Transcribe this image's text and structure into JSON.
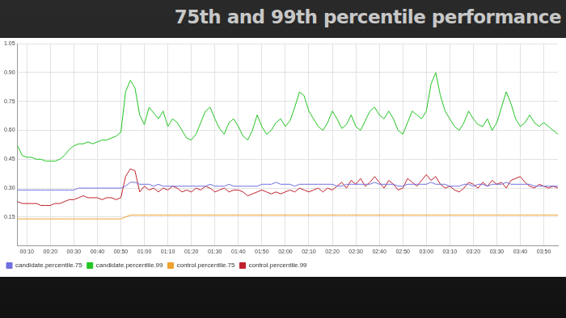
{
  "chart_data": {
    "type": "line",
    "title": "75th and 99th percentile performance",
    "categories": [
      null,
      null,
      "00:10",
      null,
      null,
      null,
      null,
      "00:20",
      null,
      null,
      null,
      null,
      "00:30",
      null,
      null,
      null,
      null,
      "00:40",
      null,
      null,
      null,
      null,
      "00:50",
      null,
      null,
      null,
      null,
      "01:00",
      null,
      null,
      null,
      null,
      "01:10",
      null,
      null,
      null,
      null,
      "01:20",
      null,
      null,
      null,
      null,
      "01:30",
      null,
      null,
      null,
      null,
      "01:40",
      null,
      null,
      null,
      null,
      "01:50",
      null,
      null,
      null,
      null,
      "02:00",
      null,
      null,
      null,
      null,
      "02:10",
      null,
      null,
      null,
      null,
      "02:20",
      null,
      null,
      null,
      null,
      "02:30",
      null,
      null,
      null,
      null,
      "02:40",
      null,
      null,
      null,
      null,
      "02:50",
      null,
      null,
      null,
      null,
      "03:00",
      null,
      null,
      null,
      null,
      "03:10",
      null,
      null,
      null,
      null,
      "03:20",
      null,
      null,
      null,
      null,
      "03:30",
      null,
      null,
      null,
      null,
      "03:40",
      null,
      null,
      null,
      null,
      "03:50",
      null,
      null,
      null
    ],
    "series": [
      {
        "name": "candidate.percentile.75",
        "color": "#7070e0",
        "values": [
          0.29,
          0.29,
          0.29,
          0.29,
          0.29,
          0.29,
          0.29,
          0.29,
          0.29,
          0.29,
          0.29,
          0.29,
          0.29,
          0.3,
          0.3,
          0.3,
          0.3,
          0.3,
          0.3,
          0.3,
          0.3,
          0.3,
          0.3,
          0.31,
          0.33,
          0.33,
          0.32,
          0.32,
          0.32,
          0.31,
          0.32,
          0.31,
          0.31,
          0.31,
          0.31,
          0.31,
          0.31,
          0.31,
          0.31,
          0.31,
          0.31,
          0.32,
          0.31,
          0.31,
          0.31,
          0.32,
          0.31,
          0.31,
          0.31,
          0.31,
          0.31,
          0.31,
          0.32,
          0.32,
          0.32,
          0.33,
          0.32,
          0.32,
          0.32,
          0.31,
          0.32,
          0.32,
          0.32,
          0.32,
          0.32,
          0.32,
          0.32,
          0.32,
          0.31,
          0.31,
          0.32,
          0.32,
          0.32,
          0.32,
          0.32,
          0.32,
          0.33,
          0.32,
          0.32,
          0.32,
          0.32,
          0.31,
          0.31,
          0.32,
          0.32,
          0.32,
          0.32,
          0.32,
          0.33,
          0.32,
          0.32,
          0.32,
          0.31,
          0.31,
          0.31,
          0.32,
          0.32,
          0.31,
          0.32,
          0.32,
          0.31,
          0.32,
          0.32,
          0.32,
          0.33,
          0.32,
          0.32,
          0.32,
          0.32,
          0.32,
          0.31,
          0.31,
          0.31,
          0.31,
          0.31,
          0.31
        ]
      },
      {
        "name": "candidate.percentile.99",
        "color": "#22c422",
        "values": [
          0.52,
          0.47,
          0.46,
          0.46,
          0.45,
          0.45,
          0.44,
          0.44,
          0.44,
          0.45,
          0.47,
          0.5,
          0.52,
          0.53,
          0.53,
          0.54,
          0.53,
          0.54,
          0.55,
          0.55,
          0.56,
          0.57,
          0.59,
          0.8,
          0.86,
          0.82,
          0.68,
          0.63,
          0.72,
          0.69,
          0.66,
          0.7,
          0.62,
          0.66,
          0.64,
          0.6,
          0.56,
          0.55,
          0.58,
          0.64,
          0.7,
          0.72,
          0.66,
          0.61,
          0.58,
          0.64,
          0.66,
          0.62,
          0.57,
          0.55,
          0.6,
          0.68,
          0.62,
          0.58,
          0.6,
          0.64,
          0.66,
          0.62,
          0.65,
          0.72,
          0.8,
          0.78,
          0.7,
          0.66,
          0.62,
          0.6,
          0.64,
          0.7,
          0.66,
          0.61,
          0.63,
          0.68,
          0.62,
          0.6,
          0.65,
          0.7,
          0.72,
          0.68,
          0.66,
          0.7,
          0.66,
          0.6,
          0.58,
          0.64,
          0.7,
          0.68,
          0.66,
          0.7,
          0.84,
          0.9,
          0.78,
          0.7,
          0.66,
          0.62,
          0.6,
          0.64,
          0.7,
          0.66,
          0.63,
          0.62,
          0.66,
          0.6,
          0.64,
          0.72,
          0.8,
          0.74,
          0.66,
          0.62,
          0.64,
          0.68,
          0.64,
          0.62,
          0.64,
          0.62,
          0.6,
          0.58
        ]
      },
      {
        "name": "control.percentile.75",
        "color": "#f0a030",
        "values": [
          0.14,
          0.14,
          0.14,
          0.14,
          0.14,
          0.14,
          0.14,
          0.14,
          0.14,
          0.14,
          0.14,
          0.14,
          0.14,
          0.14,
          0.14,
          0.14,
          0.14,
          0.14,
          0.14,
          0.14,
          0.14,
          0.14,
          0.14,
          0.15,
          0.16,
          0.16,
          0.16,
          0.16,
          0.16,
          0.16,
          0.16,
          0.16,
          0.16,
          0.16,
          0.16,
          0.16,
          0.16,
          0.16,
          0.16,
          0.16,
          0.16,
          0.16,
          0.16,
          0.16,
          0.16,
          0.16,
          0.16,
          0.16,
          0.16,
          0.16,
          0.16,
          0.16,
          0.16,
          0.16,
          0.16,
          0.16,
          0.16,
          0.16,
          0.16,
          0.16,
          0.16,
          0.16,
          0.16,
          0.16,
          0.16,
          0.16,
          0.16,
          0.16,
          0.16,
          0.16,
          0.16,
          0.16,
          0.16,
          0.16,
          0.16,
          0.16,
          0.16,
          0.16,
          0.16,
          0.16,
          0.16,
          0.16,
          0.16,
          0.16,
          0.16,
          0.16,
          0.16,
          0.16,
          0.16,
          0.16,
          0.16,
          0.16,
          0.16,
          0.16,
          0.16,
          0.16,
          0.16,
          0.16,
          0.16,
          0.16,
          0.16,
          0.16,
          0.16,
          0.16,
          0.16,
          0.16,
          0.16,
          0.16,
          0.16,
          0.16,
          0.16,
          0.16,
          0.16,
          0.16,
          0.16,
          0.16
        ]
      },
      {
        "name": "control.percentile.99",
        "color": "#c0202c",
        "values": [
          0.23,
          0.22,
          0.22,
          0.22,
          0.22,
          0.21,
          0.21,
          0.21,
          0.22,
          0.22,
          0.23,
          0.24,
          0.24,
          0.25,
          0.26,
          0.25,
          0.25,
          0.25,
          0.24,
          0.25,
          0.25,
          0.24,
          0.25,
          0.36,
          0.4,
          0.39,
          0.28,
          0.31,
          0.29,
          0.3,
          0.28,
          0.3,
          0.29,
          0.31,
          0.3,
          0.28,
          0.29,
          0.28,
          0.3,
          0.29,
          0.31,
          0.3,
          0.28,
          0.29,
          0.3,
          0.28,
          0.29,
          0.29,
          0.28,
          0.26,
          0.27,
          0.28,
          0.29,
          0.28,
          0.27,
          0.28,
          0.27,
          0.28,
          0.29,
          0.28,
          0.3,
          0.29,
          0.28,
          0.29,
          0.3,
          0.28,
          0.3,
          0.29,
          0.31,
          0.33,
          0.3,
          0.34,
          0.32,
          0.35,
          0.31,
          0.33,
          0.36,
          0.33,
          0.3,
          0.34,
          0.32,
          0.29,
          0.3,
          0.35,
          0.33,
          0.31,
          0.34,
          0.37,
          0.34,
          0.36,
          0.32,
          0.3,
          0.31,
          0.29,
          0.28,
          0.3,
          0.33,
          0.32,
          0.3,
          0.33,
          0.31,
          0.34,
          0.32,
          0.33,
          0.3,
          0.34,
          0.35,
          0.36,
          0.33,
          0.31,
          0.3,
          0.32,
          0.31,
          0.3,
          0.31,
          0.3
        ]
      }
    ],
    "ylim": [
      0,
      1.05
    ],
    "yticks": [
      0.15,
      {
        "value": 0.3,
        "label": "0.30"
      },
      0.45,
      {
        "value": 0.6,
        "label": "0.60"
      },
      0.75,
      {
        "value": 0.9,
        "label": "0.90"
      },
      1.05
    ],
    "grid": true,
    "legend": "bottom"
  }
}
